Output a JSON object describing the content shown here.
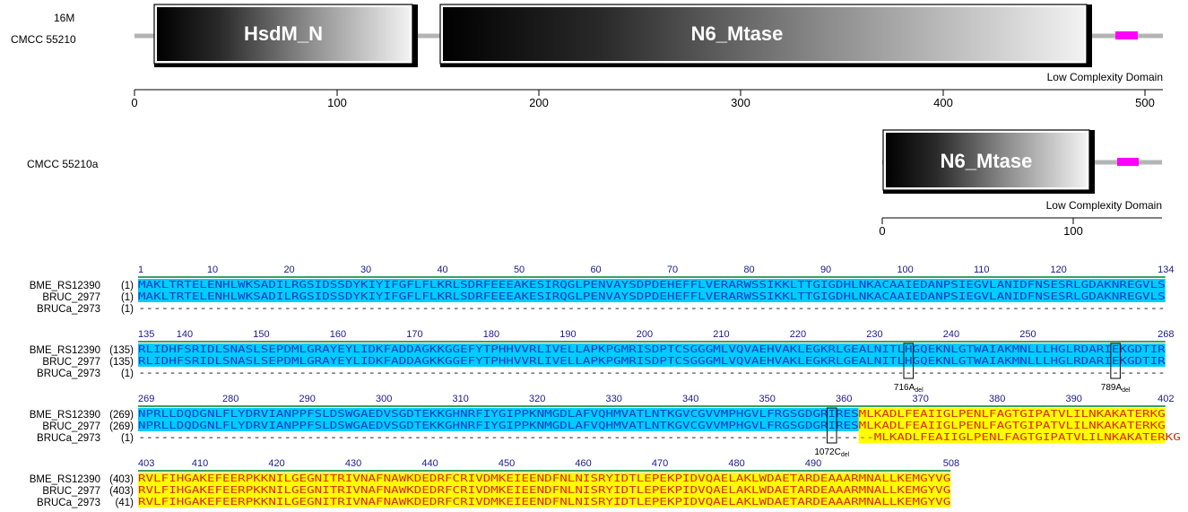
{
  "panel_a": {
    "strain_id": "16M",
    "strain_name": "CMCC  55210",
    "domain_1": "HsdM_N",
    "domain_2": "N6_Mtase",
    "low_complexity_label": "Low Complexity Domain",
    "axis_ticks": [
      "0",
      "100",
      "200",
      "300",
      "400",
      "500"
    ]
  },
  "panel_b": {
    "strain_name": "CMCC  55210a",
    "domain_1": "N6_Mtase",
    "low_complexity_label": "Low Complexity Domain",
    "axis_ticks": [
      "0",
      "100"
    ]
  },
  "colors": {
    "low_complexity": "#ff00ff",
    "backbone": "#b4b4b4",
    "aligned_blue": "#00ccff",
    "aligned_blue_text": "#0a3cc0",
    "aligned_yellow": "#ffff00",
    "aligned_yellow_text": "#dc2800",
    "number_text": "#1a1a8c",
    "consensus_bar": "#3aa060"
  },
  "alignment": {
    "seq_names": [
      "BME_RS12390",
      "BRUC_2977",
      "BRUCa_2973"
    ],
    "blocks": [
      {
        "ruler": [
          "1",
          "10",
          "20",
          "30",
          "40",
          "50",
          "60",
          "70",
          "80",
          "90",
          "100",
          "110",
          "120",
          "134"
        ],
        "starts": [
          "(1)",
          "(1)",
          "(1)"
        ],
        "rows": [
          "MAKLTRTELENHLWKSADILRGSIDSSDYKIYIFGFLFLKRLSDRFEEEAKESIRQGLPENVAYSDPDEHEFFLVERARWSSIKKLTTGIGDHLNKACAAIEDANPSIEGVLANIDFNSESRLGDAKNREGVLS",
          "MAKLTRTELENHLWKSADILRGSIDSSDYKIYIFGFLFLKRLSDRFEEEAKESIRQGLPENVAYSDPDEHEFFLVERARWSSIKKLTTGIGDHLNKACAAIEDANPSIEGVLANIDFNSESRLGDAKNREGVLS",
          "----------------------------------------------------------------------------------------------------------------------------------------------"
        ],
        "annotations": []
      },
      {
        "ruler": [
          "135",
          "140",
          "150",
          "160",
          "170",
          "180",
          "190",
          "200",
          "210",
          "220",
          "230",
          "240",
          "250",
          "268"
        ],
        "starts": [
          "(135)",
          "(135)",
          "(1)"
        ],
        "rows": [
          "RLIDHFSRIDLSNASLSEPDMLGRAYEYLIDKFADDAGKKGGEFYTPHHVVRLIVELLAPKPGMRISDPTCSGGGMLVQVAEHVAKLEGKRLGEALNITLHGQEKNLGTWAIAKMNLLLHGLRDARIEKGDTIR",
          "RLIDHFSRIDLSNASLSEPDMLGRAYEYLIDKFADDAGKKGGEFYTPHHVVRLIVELLAPKPGMRISDPTCSGGGMLVQVAEHVAKLEGKRLGEALNITLHGQEKNLGTWAIAKMNLLLHGLRDARIEKGDTIR",
          "----------------------------------------------------------------------------------------------------------------------------------------------"
        ],
        "annotations": [
          {
            "label": "716A",
            "sub": "del"
          },
          {
            "label": "789A",
            "sub": "del"
          }
        ]
      },
      {
        "ruler": [
          "269",
          "280",
          "290",
          "300",
          "310",
          "320",
          "330",
          "340",
          "350",
          "360",
          "370",
          "380",
          "390",
          "402"
        ],
        "starts": [
          "(269)",
          "(269)",
          "(1)"
        ],
        "rows": [
          "NPRLLDQDGNLFLYDRVIANPPFSLDSWGAEDVSGDTEKKGHNRFIYGIPPKNMGDLAFVQHMVATLNTKGVCGVVMPHGVLFRGSGDGRIRESMLKADLFEAIIGLPENLFAGTGIPATVLILNKAKATERKG",
          "NPRLLDQDGNLFLYDRVIANPPFSLDSWGAEDVSGDTEKKGHNRFIYGIPPKNMGDLAFVQHMVATLNTKGVCGVVMPHGVLFRGSGDGRIRESMLKADLFEAIIGLPENLFAGTGIPATVLILNKAKATERKG",
          "------------------------------------------------------------------------------------------------MLKADLFEAIIGLPENLFAGTGIPATVLILNKAKATERKG"
        ],
        "annotations": [
          {
            "label": "1072C",
            "sub": "del"
          }
        ]
      },
      {
        "ruler": [
          "403",
          "410",
          "420",
          "430",
          "440",
          "450",
          "460",
          "470",
          "480",
          "490",
          "508"
        ],
        "starts": [
          "(403)",
          "(403)",
          "(41)"
        ],
        "rows": [
          "RVLFIHGAKEFEERPKKNILGEGNITRIVNAFNAWKDEDRFCRIVDMKEIEENDFNLNISRYIDTLEPEKPIDVQAELAKLWDAETARDEAAARMNALLKEMGYVG",
          "RVLFIHGAKEFEERPKKNILGEGNITRIVNAFNAWKDEDRFCRIVDMKEIEENDFNLNISRYIDTLEPEKPIDVQAELAKLWDAETARDEAAARMNALLKEMGYVG",
          "RVLFIHGAKEFEERPKKNILGEGNITRIVNAFNAWKDEDRFCRIVDMKEIEENDFNLNISRYIDTLEPEKPIDVQAELAKLWDAETARDEAAARMNALLKEMGYVG"
        ],
        "annotations": []
      }
    ]
  }
}
